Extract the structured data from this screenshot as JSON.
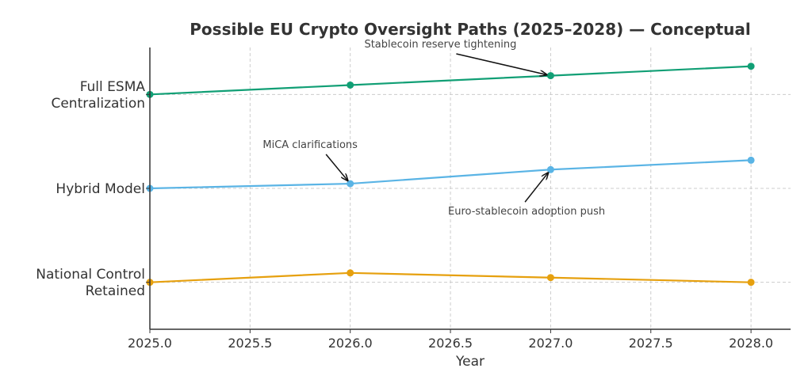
{
  "chart_data": {
    "type": "line",
    "title": "Possible EU Crypto Oversight Paths (2025–2028) — Conceptual",
    "xlabel": "Year",
    "ylabel": "",
    "x": [
      2025,
      2026,
      2027,
      2028
    ],
    "xlim": [
      2025.0,
      2028.2
    ],
    "ylim": [
      -0.5,
      2.5
    ],
    "xticks": [
      2025.0,
      2025.5,
      2026.0,
      2026.5,
      2027.0,
      2027.5,
      2028.0
    ],
    "xtick_labels": [
      "2025.0",
      "2025.5",
      "2026.0",
      "2026.5",
      "2027.0",
      "2027.5",
      "2028.0"
    ],
    "yticks": [
      0,
      1,
      2
    ],
    "ytick_labels": [
      [
        "National Control",
        "Retained"
      ],
      [
        "Hybrid Model"
      ],
      [
        "Full ESMA",
        "Centralization"
      ]
    ],
    "grid": true,
    "legend": "none",
    "series": [
      {
        "name": "Full ESMA Centralization",
        "color": "#119f75",
        "values": [
          2.0,
          2.1,
          2.2,
          2.3
        ]
      },
      {
        "name": "Hybrid Model",
        "color": "#5ab4e5",
        "values": [
          1.0,
          1.05,
          1.2,
          1.3
        ]
      },
      {
        "name": "National Control Retained",
        "color": "#e6a00e",
        "values": [
          0.0,
          0.1,
          0.05,
          0.0
        ]
      }
    ],
    "annotations": [
      {
        "text": "Stablecoin reserve tightening",
        "x": 2027,
        "y": 2.2,
        "text_x": 2026.45,
        "text_y": 2.5
      },
      {
        "text": "MiCA clarifications",
        "x": 2026,
        "y": 1.05,
        "text_x": 2025.8,
        "text_y": 1.43
      },
      {
        "text": "Euro-stablecoin adoption push",
        "x": 2027,
        "y": 1.2,
        "text_x": 2026.88,
        "text_y": 0.72
      }
    ]
  }
}
